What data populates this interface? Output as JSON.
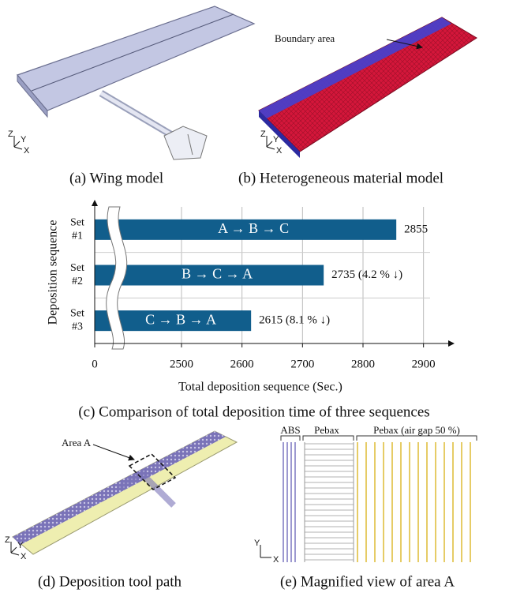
{
  "panels": {
    "a": {
      "caption": "(a) Wing model"
    },
    "b": {
      "caption": "(b) Heterogeneous material model",
      "annotation": "Boundary area"
    },
    "c": {
      "caption": "(c) Comparison of total deposition time of three sequences"
    },
    "d": {
      "caption": "(d) Deposition tool path",
      "annotation": "Area A"
    },
    "e": {
      "caption": "(e) Magnified view of area A",
      "labels": [
        "ABS",
        "Pebax",
        "Pebax (air gap 50 %)"
      ]
    }
  },
  "axis_triad": {
    "z": "Z",
    "y": "Y",
    "x": "X"
  },
  "chart_data": {
    "type": "bar",
    "orientation": "horizontal",
    "categories": [
      "Set #1",
      "Set #2",
      "Set #3"
    ],
    "values": [
      2855,
      2735,
      2615
    ],
    "value_labels": [
      "2855",
      "2735 (4.2 % ↓)",
      "2615 (8.1 % ↓)"
    ],
    "bar_labels": [
      "A → B → C",
      "B → C → A",
      "C → B → A"
    ],
    "color": "#115e8c",
    "xlim": [
      0,
      2950
    ],
    "xticks": [
      0,
      2500,
      2600,
      2700,
      2800,
      2900
    ],
    "xlabel": "Total deposition sequence (Sec.)",
    "ylabel": "Deposition sequence",
    "grid": true,
    "axis_break": true
  }
}
